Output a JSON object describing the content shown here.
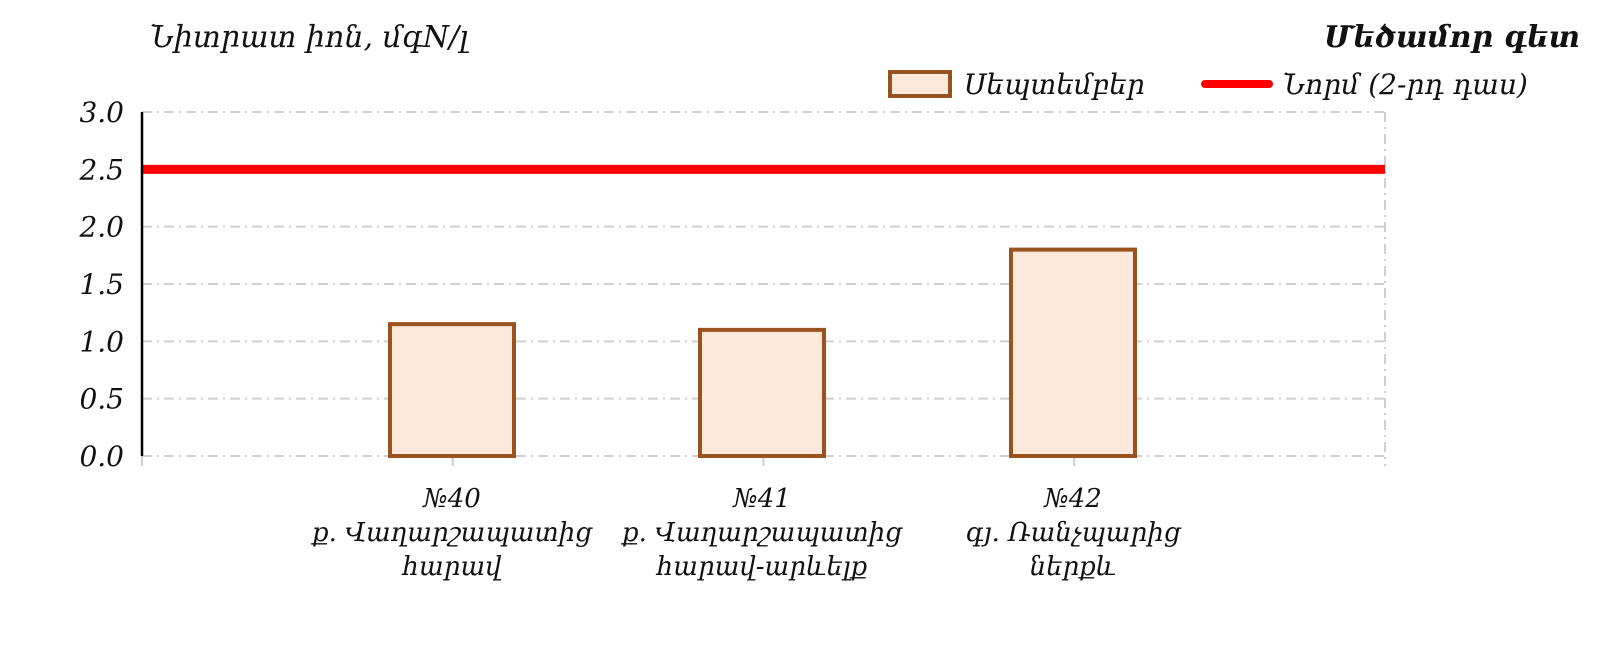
{
  "river_name": "Մեծամոր գետ",
  "chart_data": {
    "type": "bar",
    "ylabel": "Նիտրատ իոն, մգN/լ",
    "ylim": [
      0,
      3.0
    ],
    "yticks": [
      "3.0",
      "2.5",
      "2.0",
      "1.5",
      "1.0",
      "0.5",
      "0.0"
    ],
    "categories": [
      {
        "code": "№40",
        "name": "ք. Վաղարշապատից հարավ"
      },
      {
        "code": "№41",
        "name": "ք. Վաղարշապատից հարավ-արևելք"
      },
      {
        "code": "№42",
        "name": "գյ. Ռանչպարից ներքև"
      }
    ],
    "series": [
      {
        "name": "Սեպտեմբեր",
        "values": [
          1.15,
          1.1,
          1.8
        ],
        "color": "#fde9dc",
        "edge": "#9a521f"
      }
    ],
    "norm": {
      "name": "Նորմ (2-րդ դաս)",
      "value": 2.5,
      "color": "#ff0000"
    },
    "grid": true,
    "legend_position": "top-right"
  }
}
